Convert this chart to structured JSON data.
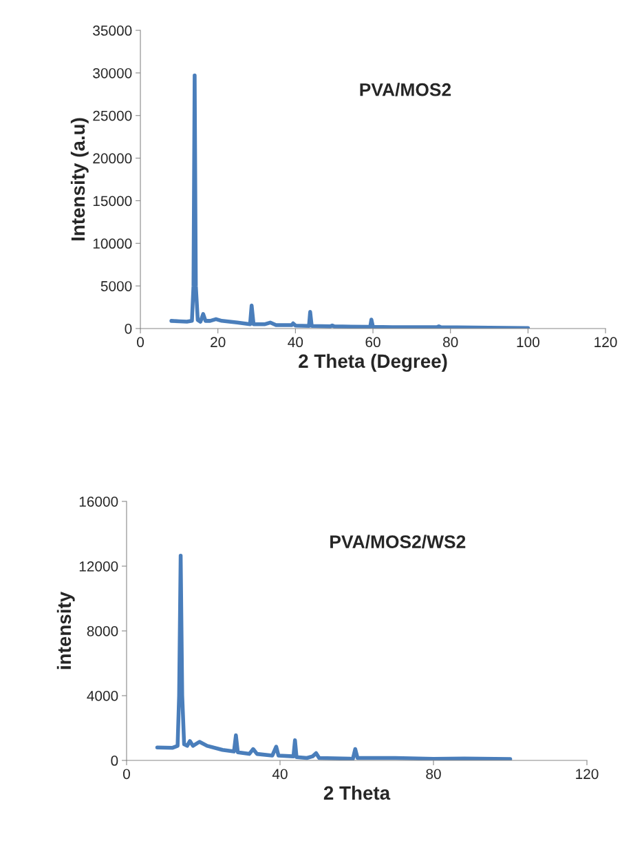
{
  "chart_data": [
    {
      "type": "line",
      "title": "PVA/MOS2",
      "xlabel": "2 Theta (Degree)",
      "ylabel": "Intensity (a.u)",
      "xlim": [
        0,
        120
      ],
      "xticks": [
        0,
        20,
        40,
        60,
        80,
        100,
        120
      ],
      "ylim": [
        0,
        35000
      ],
      "yticks": [
        0,
        5000,
        10000,
        15000,
        20000,
        25000,
        30000,
        35000
      ],
      "grid": false,
      "legend": false,
      "marker": "none",
      "line_style": "solid",
      "series": [
        {
          "color": "#4a7ebb",
          "x": [
            8,
            10,
            12,
            13.3,
            13.7,
            14.0,
            14.3,
            14.8,
            15.5,
            16.2,
            16.8,
            18,
            19.5,
            21,
            25,
            28.3,
            28.7,
            29.2,
            32,
            33.5,
            35,
            39,
            39.4,
            40,
            43.5,
            43.8,
            44.2,
            49,
            49.5,
            50,
            59.3,
            59.6,
            60,
            65,
            76.5,
            77,
            77.5,
            90,
            100
          ],
          "values": [
            900,
            850,
            800,
            900,
            5000,
            29700,
            5000,
            1000,
            800,
            1700,
            900,
            900,
            1100,
            900,
            700,
            500,
            2700,
            500,
            500,
            700,
            400,
            400,
            600,
            350,
            300,
            1950,
            300,
            250,
            350,
            250,
            200,
            1050,
            200,
            150,
            150,
            250,
            150,
            100,
            50
          ]
        }
      ]
    },
    {
      "type": "line",
      "title": "PVA/MOS2/WS2",
      "xlabel": "2 Theta",
      "ylabel": "intensity",
      "xlim": [
        0,
        120
      ],
      "xticks": [
        0,
        40,
        80,
        120
      ],
      "ylim": [
        0,
        16000
      ],
      "yticks": [
        0,
        4000,
        8000,
        12000,
        16000
      ],
      "grid": false,
      "legend": false,
      "marker": "none",
      "line_style": "solid",
      "series": [
        {
          "color": "#4a7ebb",
          "x": [
            8,
            12,
            13.3,
            13.7,
            14.1,
            14.5,
            15,
            15.8,
            16.5,
            17.3,
            19,
            21,
            25,
            28,
            28.5,
            29,
            32,
            33,
            34,
            38,
            39,
            39.6,
            43.5,
            43.9,
            44.3,
            47,
            48.5,
            49.4,
            50.2,
            59,
            59.6,
            60.2,
            70,
            80,
            88,
            100
          ],
          "values": [
            800,
            780,
            900,
            4000,
            12650,
            4000,
            1000,
            900,
            1200,
            900,
            1150,
            900,
            650,
            550,
            1550,
            500,
            400,
            700,
            400,
            300,
            850,
            300,
            250,
            1250,
            200,
            150,
            250,
            450,
            150,
            100,
            700,
            150,
            150,
            100,
            120,
            80
          ]
        }
      ]
    }
  ]
}
